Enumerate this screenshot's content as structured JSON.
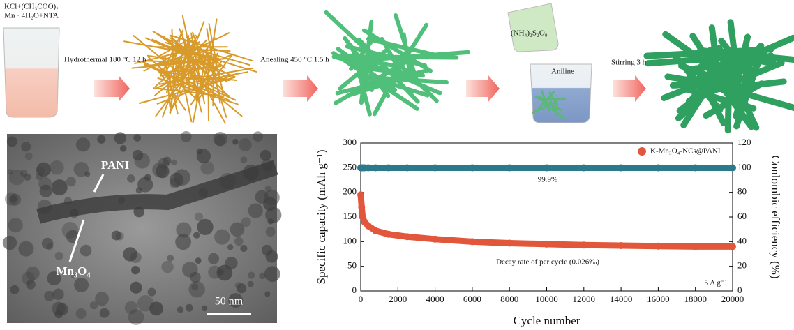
{
  "scheme": {
    "precursor": [
      "KCl+(CH₃COO)₂",
      "Mn · 4H₂O+NTA"
    ],
    "step1": "Hydrothermal 180 °C 12 h",
    "step2": "Anealing 450 °C  1.5 h",
    "oxidant": "(NH₄)₂S₂O₈",
    "monomer": "Aniline",
    "step3": "Stirring 3 h"
  },
  "image": {
    "label_shell": "PANI",
    "label_core": "Mn₃O₄",
    "scale_bar": "50 nm"
  },
  "chart_data": {
    "type": "scatter",
    "x": [
      0,
      50,
      100,
      200,
      400,
      800,
      1500,
      2500,
      4000,
      6000,
      8000,
      10000,
      12000,
      14000,
      16000,
      18000,
      20000
    ],
    "series": [
      {
        "name": "K-Mn₃O₄-NCs@PANI",
        "color": "#e2573b",
        "values": [
          195,
          170,
          150,
          140,
          132,
          122,
          115,
          110,
          105,
          100,
          97,
          95,
          93,
          92,
          91,
          90,
          90
        ]
      },
      {
        "color": "#2b7a8c",
        "axis": "y2",
        "values": [
          99.9,
          99.9,
          99.9,
          99.9,
          99.9,
          99.9,
          99.9,
          99.9,
          99.9,
          99.9,
          99.9,
          99.9,
          99.9,
          99.9,
          99.9,
          99.9,
          99.9
        ]
      }
    ],
    "xlabel": "Cycle number",
    "ylabel": "Specific capacity (mAh g⁻¹)",
    "y2label": "Conlombic efficiency (%)",
    "xlim": [
      0,
      20000
    ],
    "xticks": [
      0,
      2000,
      4000,
      6000,
      8000,
      10000,
      12000,
      14000,
      16000,
      18000,
      20000
    ],
    "ylim": [
      0,
      300
    ],
    "yticks": [
      0,
      50,
      100,
      150,
      200,
      250,
      300
    ],
    "y2lim": [
      0,
      120
    ],
    "y2ticks": [
      0,
      20,
      40,
      60,
      80,
      100,
      120
    ],
    "annotations": [
      "99.9%",
      "Decay rate of per cycle (0.026‰)",
      "5 A g⁻¹"
    ],
    "legend": "upper right"
  }
}
